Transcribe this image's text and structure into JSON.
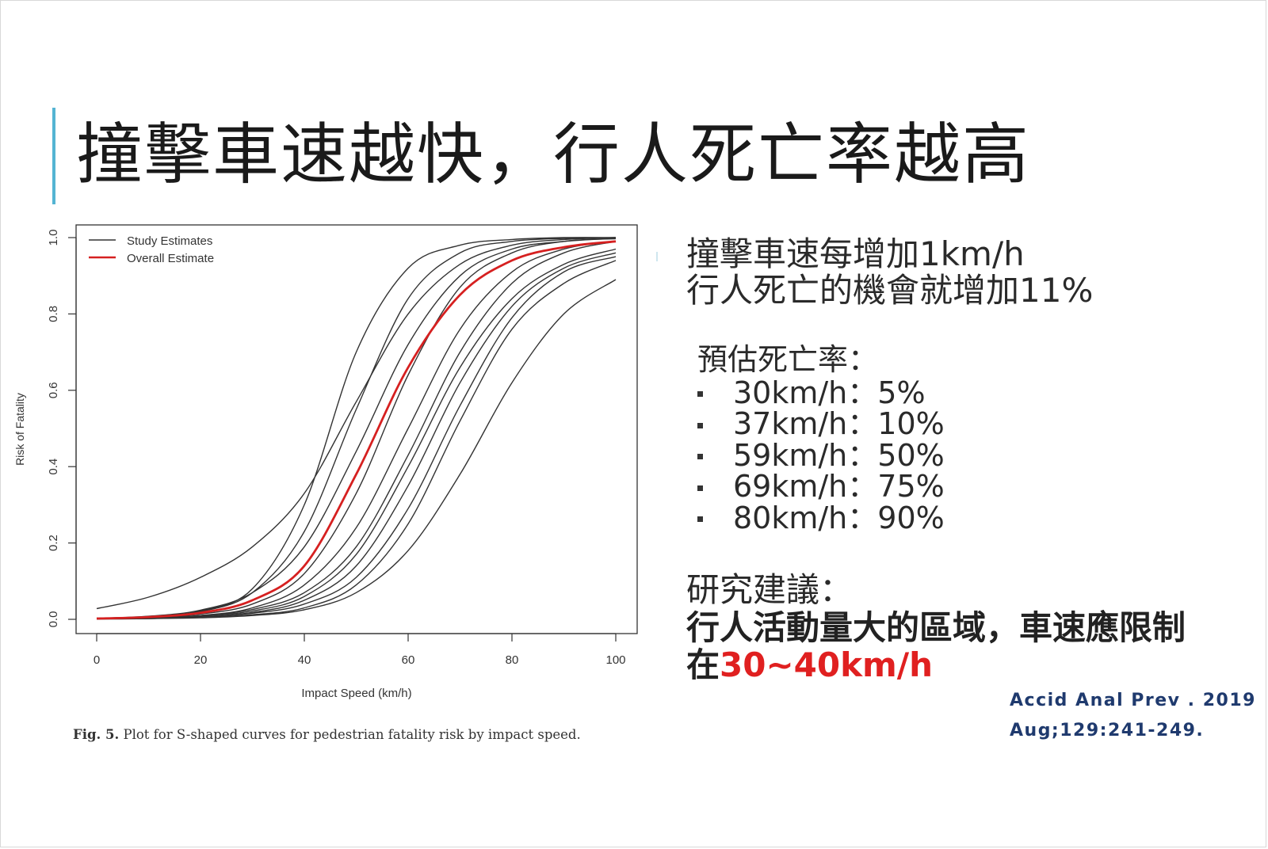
{
  "slide": {
    "title": "撞擊車速越快，行人死亡率越高",
    "colors": {
      "accent": "#54b4d3",
      "highlight": "#e02020",
      "citation": "#1f3a6e"
    }
  },
  "figure": {
    "caption_label": "Fig. 5.",
    "caption_text": "Plot for S-shaped curves for pedestrian fatality risk by impact speed."
  },
  "right_panel": {
    "lead_lines": [
      "撞擊車速每增加1km/h",
      "行人死亡的機會就增加11%"
    ],
    "estimate_heading": "預估死亡率：",
    "estimates": [
      {
        "speed": "30km/h",
        "sep": "：",
        "rate": "5%"
      },
      {
        "speed": "37km/h",
        "sep": "：",
        "rate": "10%"
      },
      {
        "speed": "59km/h",
        "sep": "：",
        "rate": "50%"
      },
      {
        "speed": "69km/h",
        "sep": "：",
        "rate": "75%"
      },
      {
        "speed": "80km/h",
        "sep": "：",
        "rate": "90%"
      }
    ],
    "recommend_heading": "研究建議：",
    "recommend_body": "行人活動量大的區域，車速應限制",
    "recommend_prefix": "在",
    "recommend_range": "30~40km/h"
  },
  "citation": {
    "line1": "Accid Anal Prev . 2019",
    "line2": "Aug;129:241-249."
  },
  "chart_data": {
    "type": "line",
    "xlabel": "Impact Speed (km/h)",
    "ylabel": "Risk of Fatality",
    "xlim": [
      0,
      100
    ],
    "ylim": [
      0,
      1
    ],
    "xticks": [
      0,
      20,
      40,
      60,
      80,
      100
    ],
    "yticks": [
      0.0,
      0.2,
      0.4,
      0.6,
      0.8,
      1.0
    ],
    "ytick_labels": [
      "0.0",
      "0.2",
      "0.4",
      "0.6",
      "0.8",
      "1.0"
    ],
    "grid": false,
    "legend": {
      "placement": "top-left",
      "entries": [
        {
          "label": "Study Estimates",
          "color": "#333333"
        },
        {
          "label": "Overall Estimate",
          "color": "#d62020"
        }
      ]
    },
    "series": [
      {
        "group": "study",
        "color": "#333333",
        "x": [
          0,
          10,
          20,
          30,
          40,
          50,
          60,
          70,
          80,
          90,
          100
        ],
        "y": [
          0.028,
          0.058,
          0.11,
          0.19,
          0.33,
          0.57,
          0.8,
          0.93,
          0.98,
          0.995,
          1.0
        ]
      },
      {
        "group": "study",
        "color": "#333333",
        "x": [
          0,
          10,
          20,
          30,
          40,
          50,
          60,
          70,
          80,
          90,
          100
        ],
        "y": [
          0.003,
          0.007,
          0.022,
          0.08,
          0.3,
          0.7,
          0.92,
          0.98,
          0.995,
          1.0,
          1.0
        ]
      },
      {
        "group": "study",
        "color": "#333333",
        "x": [
          0,
          10,
          20,
          30,
          40,
          50,
          60,
          70,
          80,
          90,
          100
        ],
        "y": [
          0.002,
          0.006,
          0.02,
          0.07,
          0.23,
          0.55,
          0.84,
          0.96,
          0.99,
          0.998,
          1.0
        ]
      },
      {
        "group": "study",
        "color": "#333333",
        "x": [
          0,
          10,
          20,
          30,
          40,
          50,
          60,
          70,
          80,
          90,
          100
        ],
        "y": [
          0.003,
          0.008,
          0.024,
          0.07,
          0.19,
          0.44,
          0.72,
          0.9,
          0.97,
          0.99,
          0.998
        ]
      },
      {
        "group": "study",
        "color": "#333333",
        "x": [
          0,
          10,
          20,
          30,
          40,
          50,
          60,
          70,
          80,
          90,
          100
        ],
        "y": [
          0.002,
          0.005,
          0.014,
          0.04,
          0.12,
          0.33,
          0.64,
          0.87,
          0.96,
          0.99,
          0.997
        ]
      },
      {
        "group": "study",
        "color": "#333333",
        "x": [
          0,
          10,
          20,
          30,
          40,
          50,
          60,
          70,
          80,
          90,
          100
        ],
        "y": [
          0.002,
          0.004,
          0.01,
          0.03,
          0.09,
          0.24,
          0.5,
          0.76,
          0.91,
          0.97,
          0.99
        ]
      },
      {
        "group": "study",
        "color": "#333333",
        "x": [
          0,
          10,
          20,
          30,
          40,
          50,
          60,
          70,
          80,
          90,
          100
        ],
        "y": [
          0.002,
          0.004,
          0.01,
          0.026,
          0.07,
          0.19,
          0.43,
          0.7,
          0.88,
          0.96,
          0.99
        ]
      },
      {
        "group": "study",
        "color": "#333333",
        "x": [
          0,
          10,
          20,
          30,
          40,
          50,
          60,
          70,
          80,
          90,
          100
        ],
        "y": [
          0.002,
          0.004,
          0.009,
          0.022,
          0.06,
          0.17,
          0.4,
          0.66,
          0.84,
          0.93,
          0.97
        ]
      },
      {
        "group": "study",
        "color": "#333333",
        "x": [
          0,
          10,
          20,
          30,
          40,
          50,
          60,
          70,
          80,
          90,
          100
        ],
        "y": [
          0.001,
          0.003,
          0.007,
          0.018,
          0.05,
          0.14,
          0.35,
          0.62,
          0.82,
          0.92,
          0.96
        ]
      },
      {
        "group": "study",
        "color": "#333333",
        "x": [
          0,
          10,
          20,
          30,
          40,
          50,
          60,
          70,
          80,
          90,
          100
        ],
        "y": [
          0.001,
          0.002,
          0.006,
          0.016,
          0.04,
          0.11,
          0.29,
          0.56,
          0.79,
          0.91,
          0.95
        ]
      },
      {
        "group": "study",
        "color": "#333333",
        "x": [
          0,
          10,
          20,
          30,
          40,
          50,
          60,
          70,
          80,
          90,
          100
        ],
        "y": [
          0.001,
          0.002,
          0.005,
          0.012,
          0.03,
          0.09,
          0.25,
          0.52,
          0.76,
          0.88,
          0.94
        ]
      },
      {
        "group": "study",
        "color": "#333333",
        "x": [
          0,
          10,
          20,
          30,
          40,
          50,
          60,
          70,
          80,
          90,
          100
        ],
        "y": [
          0.001,
          0.002,
          0.004,
          0.01,
          0.025,
          0.07,
          0.18,
          0.38,
          0.62,
          0.8,
          0.89
        ]
      },
      {
        "group": "overall",
        "color": "#d62020",
        "x": [
          0,
          10,
          20,
          30,
          40,
          50,
          60,
          70,
          80,
          90,
          100
        ],
        "y": [
          0.002,
          0.006,
          0.017,
          0.05,
          0.14,
          0.38,
          0.66,
          0.85,
          0.94,
          0.975,
          0.99
        ]
      }
    ]
  }
}
